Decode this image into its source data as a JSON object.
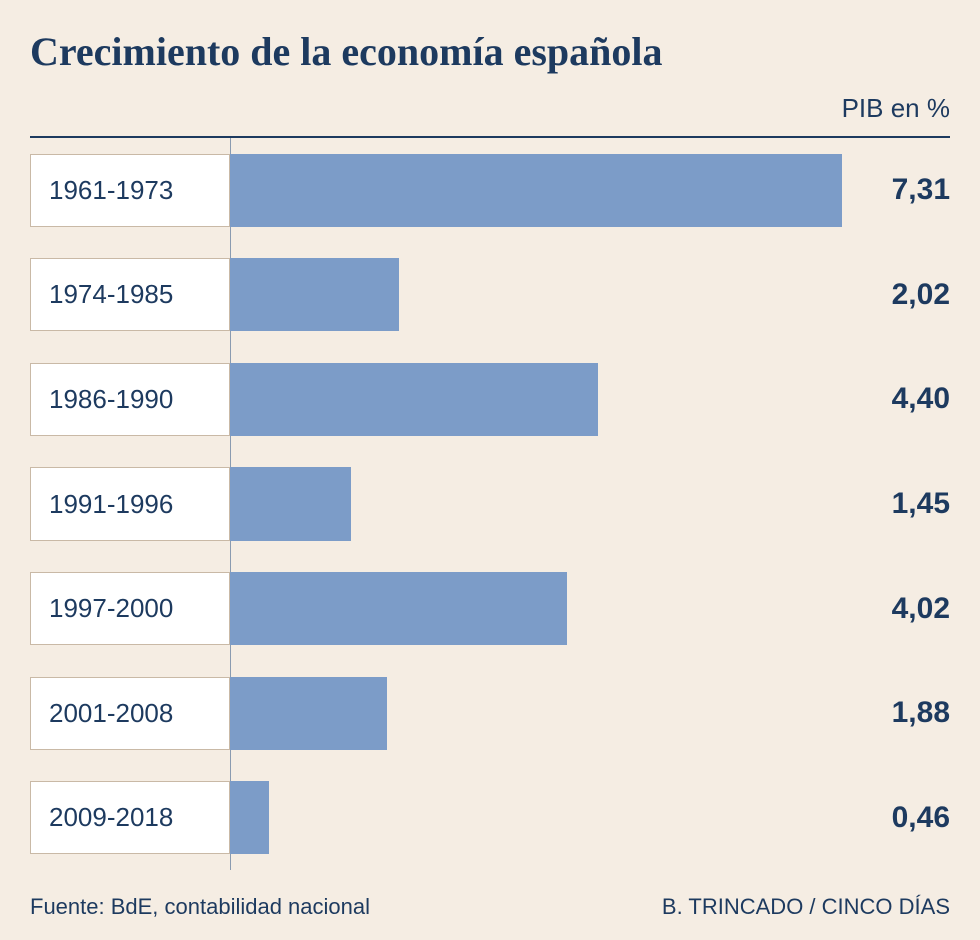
{
  "chart": {
    "type": "bar",
    "title": "Crecimiento de la economía española",
    "subtitle": "PIB en %",
    "source_label": "Fuente: BdE, contabilidad nacional",
    "credit": "B. TRINCADO / CINCO DÍAS",
    "background_color": "#f5ede3",
    "title_color": "#1d3a5f",
    "title_fontsize": 40,
    "subtitle_color": "#1d3a5f",
    "subtitle_fontsize": 26,
    "footer_color": "#1d3a5f",
    "footer_fontsize": 22,
    "top_line_color": "#1d3a5f",
    "vline_color": "#8a9bb0",
    "label_cell_width": 200,
    "label_cell_bg": "#ffffff",
    "label_cell_border": "#c9b9a6",
    "label_color": "#1d3a5f",
    "label_fontsize": 26,
    "bar_color": "#7c9cc8",
    "value_color": "#1d3a5f",
    "value_fontsize": 30,
    "xmax": 8.6,
    "rows": [
      {
        "label": "1961-1973",
        "value": 7.31,
        "value_label": "7,31"
      },
      {
        "label": "1974-1985",
        "value": 2.02,
        "value_label": "2,02"
      },
      {
        "label": "1986-1990",
        "value": 4.4,
        "value_label": "4,40"
      },
      {
        "label": "1991-1996",
        "value": 1.45,
        "value_label": "1,45"
      },
      {
        "label": "1997-2000",
        "value": 4.02,
        "value_label": "4,02"
      },
      {
        "label": "2001-2008",
        "value": 1.88,
        "value_label": "1,88"
      },
      {
        "label": "2009-2018",
        "value": 0.46,
        "value_label": "0,46"
      }
    ]
  }
}
